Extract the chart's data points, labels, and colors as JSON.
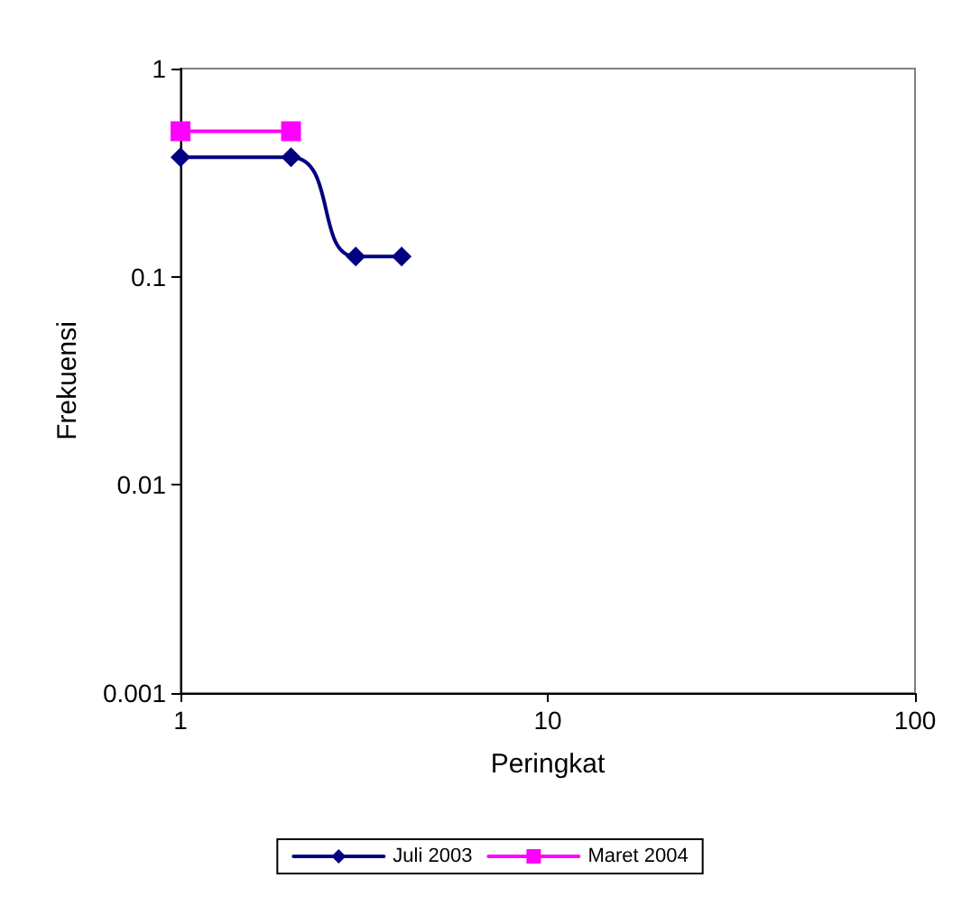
{
  "chart_data": {
    "type": "line",
    "xlabel": "Peringkat",
    "ylabel": "Frekuensi",
    "log": "xy",
    "xlim": [
      1,
      100
    ],
    "xticks": [
      1,
      10,
      100
    ],
    "ylim": [
      0.001,
      1
    ],
    "yticks": [
      0.001,
      0.01,
      0.1,
      1
    ],
    "grid": false,
    "legend": "bottom",
    "line_style": "solid",
    "series": [
      {
        "name": "Juli 2003",
        "color": "#000080",
        "marker": "diamond",
        "x": [
          1,
          2,
          3,
          4
        ],
        "values": [
          0.375,
          0.375,
          0.125,
          0.125
        ]
      },
      {
        "name": "Maret 2004",
        "color": "#ff00ff",
        "marker": "square",
        "x": [
          1,
          2
        ],
        "values": [
          0.5,
          0.5
        ]
      }
    ]
  }
}
